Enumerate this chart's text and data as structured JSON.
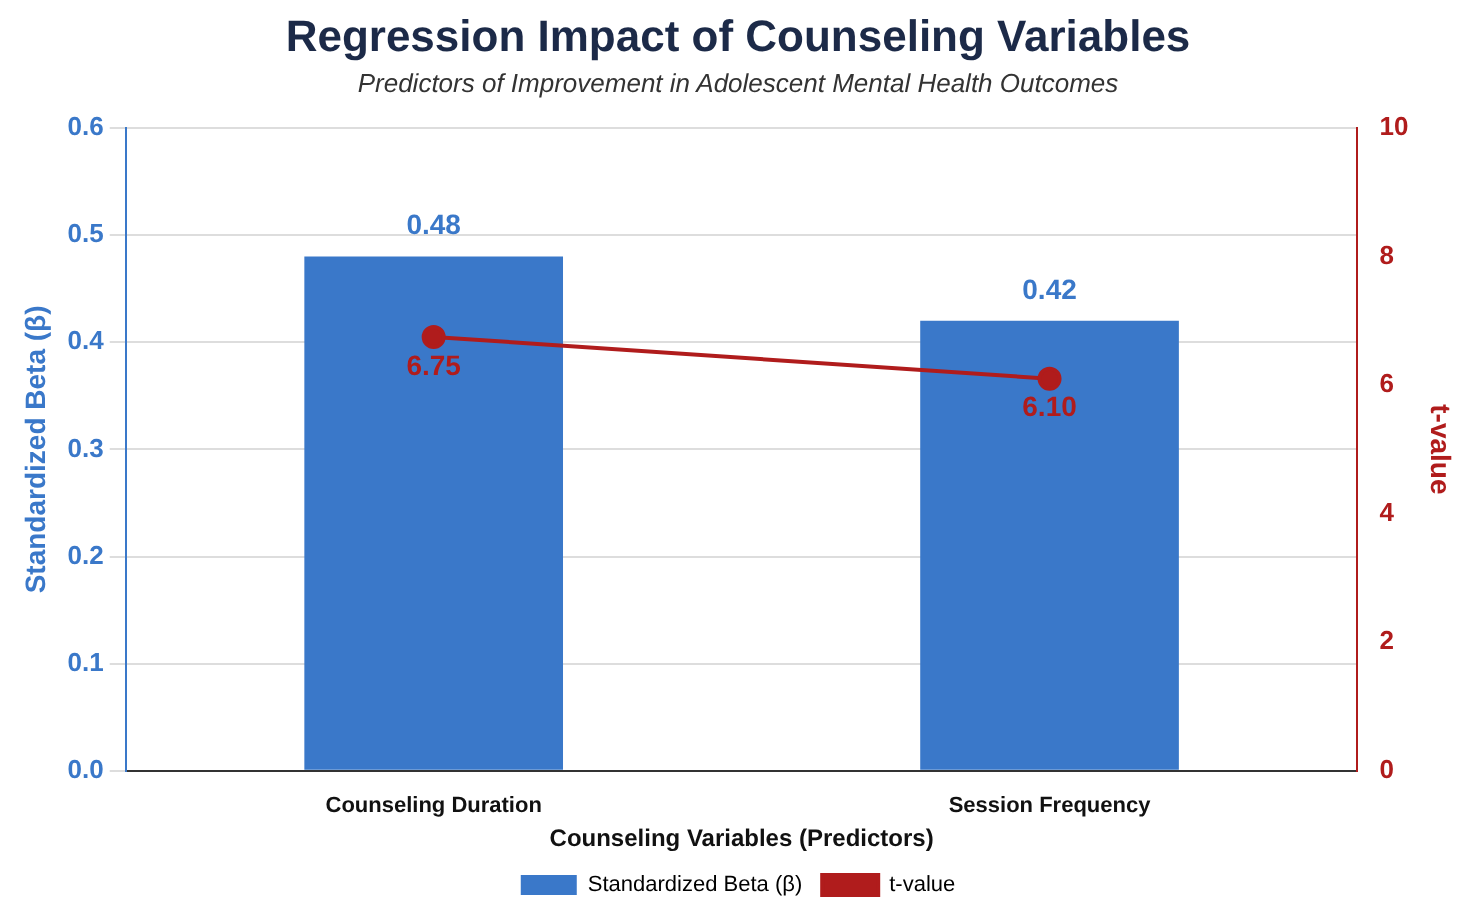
{
  "chart_data": {
    "type": "bar",
    "title": "Regression Impact of Counseling Variables",
    "subtitle": "Predictors of Improvement in Adolescent Mental Health Outcomes",
    "xlabel": "Counseling Variables (Predictors)",
    "ylabel": "Standardized Beta (β)",
    "y2label": "t-value",
    "categories": [
      "Counseling Duration",
      "Session Frequency"
    ],
    "series": [
      {
        "name": "Standardized Beta (β)",
        "color": "#3a78c9",
        "values": [
          0.48,
          0.42
        ],
        "value_labels": [
          "0.48",
          "0.42"
        ]
      },
      {
        "name": "t-value",
        "type": "line",
        "axis": "y2",
        "color": "#b01c1c",
        "values": [
          6.75,
          6.1
        ],
        "value_labels": [
          "6.75",
          "6.10"
        ]
      }
    ],
    "ylim": [
      0,
      0.6
    ],
    "yticks": [
      {
        "value": 0,
        "label": "0.0"
      },
      0.1,
      0.2,
      0.3,
      0.4,
      0.5,
      0.6
    ],
    "y2lim": [
      0,
      10
    ],
    "y2ticks": [
      0,
      2,
      4,
      6,
      8,
      10
    ],
    "grid": "y",
    "legend": "bottom",
    "marker": "circle",
    "line_style": "solid"
  }
}
